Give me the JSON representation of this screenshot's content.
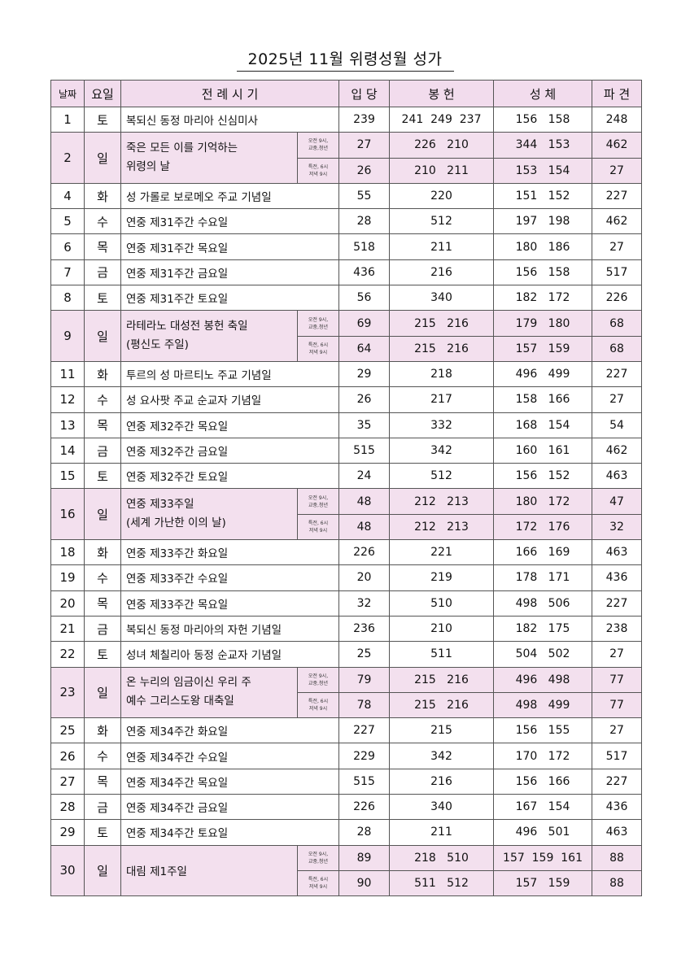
{
  "title": "2025년 11월 위령성월 성가",
  "colors": {
    "sunday_bg": "#f3e0ee",
    "header_bg": "#f2dced",
    "border": "#555555"
  },
  "headers": [
    "날짜",
    "요일",
    "전 례 시 기",
    "입 당",
    "봉 헌",
    "성 체",
    "파 견"
  ],
  "sub_labels": [
    {
      "line1": "오전 9시,",
      "line2": "교중,청년"
    },
    {
      "line1": "특전, 6시",
      "line2": "저녁 9시"
    }
  ],
  "rows": [
    {
      "date": "1",
      "day": "토",
      "name": [
        "복되신 동정 마리아 신심미사"
      ],
      "entries": [
        [
          "239",
          "241  249  237",
          "156   158",
          "248"
        ]
      ]
    },
    {
      "date": "2",
      "day": "일",
      "name": [
        "죽은 모든 이를 기억하는",
        "위령의 날"
      ],
      "entries": [
        [
          "27",
          "226   210",
          "344   153",
          "462"
        ],
        [
          "26",
          "210   211",
          "153   154",
          "27"
        ]
      ]
    },
    {
      "date": "4",
      "day": "화",
      "name": [
        "성 가롤로 보로메오 주교 기념일"
      ],
      "entries": [
        [
          "55",
          "220",
          "151   152",
          "227"
        ]
      ]
    },
    {
      "date": "5",
      "day": "수",
      "name": [
        "연중 제31주간 수요일"
      ],
      "entries": [
        [
          "28",
          "512",
          "197   198",
          "462"
        ]
      ]
    },
    {
      "date": "6",
      "day": "목",
      "name": [
        "연중 제31주간 목요일"
      ],
      "entries": [
        [
          "518",
          "211",
          "180   186",
          "27"
        ]
      ]
    },
    {
      "date": "7",
      "day": "금",
      "name": [
        "연중 제31주간 금요일"
      ],
      "entries": [
        [
          "436",
          "216",
          "156   158",
          "517"
        ]
      ]
    },
    {
      "date": "8",
      "day": "토",
      "name": [
        "연중 제31주간 토요일"
      ],
      "entries": [
        [
          "56",
          "340",
          "182   172",
          "226"
        ]
      ]
    },
    {
      "date": "9",
      "day": "일",
      "name": [
        "라테라노 대성전 봉헌 축일",
        "(평신도 주일)"
      ],
      "entries": [
        [
          "69",
          "215   216",
          "179   180",
          "68"
        ],
        [
          "64",
          "215   216",
          "157   159",
          "68"
        ]
      ]
    },
    {
      "date": "11",
      "day": "화",
      "name": [
        "투르의 성 마르티노 주교 기념일"
      ],
      "entries": [
        [
          "29",
          "218",
          "496   499",
          "227"
        ]
      ]
    },
    {
      "date": "12",
      "day": "수",
      "name": [
        "성 요사팟 주교 순교자 기념일"
      ],
      "entries": [
        [
          "26",
          "217",
          "158   166",
          "27"
        ]
      ]
    },
    {
      "date": "13",
      "day": "목",
      "name": [
        "연중 제32주간 목요일"
      ],
      "entries": [
        [
          "35",
          "332",
          "168   154",
          "54"
        ]
      ]
    },
    {
      "date": "14",
      "day": "금",
      "name": [
        "연중 제32주간 금요일"
      ],
      "entries": [
        [
          "515",
          "342",
          "160   161",
          "462"
        ]
      ]
    },
    {
      "date": "15",
      "day": "토",
      "name": [
        "연중 제32주간 토요일"
      ],
      "entries": [
        [
          "24",
          "512",
          "156   152",
          "463"
        ]
      ]
    },
    {
      "date": "16",
      "day": "일",
      "name": [
        "연중 제33주일",
        "(세계 가난한 이의 날)"
      ],
      "entries": [
        [
          "48",
          "212   213",
          "180   172",
          "47"
        ],
        [
          "48",
          "212   213",
          "172   176",
          "32"
        ]
      ]
    },
    {
      "date": "18",
      "day": "화",
      "name": [
        "연중 제33주간 화요일"
      ],
      "entries": [
        [
          "226",
          "221",
          "166   169",
          "463"
        ]
      ]
    },
    {
      "date": "19",
      "day": "수",
      "name": [
        "연중 제33주간 수요일"
      ],
      "entries": [
        [
          "20",
          "219",
          "178   171",
          "436"
        ]
      ]
    },
    {
      "date": "20",
      "day": "목",
      "name": [
        "연중 제33주간 목요일"
      ],
      "entries": [
        [
          "32",
          "510",
          "498   506",
          "227"
        ]
      ]
    },
    {
      "date": "21",
      "day": "금",
      "name": [
        "복되신 동정 마리아의 자헌 기념일"
      ],
      "entries": [
        [
          "236",
          "210",
          "182   175",
          "238"
        ]
      ]
    },
    {
      "date": "22",
      "day": "토",
      "name": [
        "성녀 체칠리아 동정 순교자 기념일"
      ],
      "entries": [
        [
          "25",
          "511",
          "504   502",
          "27"
        ]
      ]
    },
    {
      "date": "23",
      "day": "일",
      "name": [
        "온 누리의 임금이신 우리 주",
        "예수 그리스도왕 대축일"
      ],
      "entries": [
        [
          "79",
          "215   216",
          "496   498",
          "77"
        ],
        [
          "78",
          "215   216",
          "498   499",
          "77"
        ]
      ]
    },
    {
      "date": "25",
      "day": "화",
      "name": [
        "연중 제34주간 화요일"
      ],
      "entries": [
        [
          "227",
          "215",
          "156   155",
          "27"
        ]
      ]
    },
    {
      "date": "26",
      "day": "수",
      "name": [
        "연중 제34주간 수요일"
      ],
      "entries": [
        [
          "229",
          "342",
          "170   172",
          "517"
        ]
      ]
    },
    {
      "date": "27",
      "day": "목",
      "name": [
        "연중 제34주간 목요일"
      ],
      "entries": [
        [
          "515",
          "216",
          "156   166",
          "227"
        ]
      ]
    },
    {
      "date": "28",
      "day": "금",
      "name": [
        "연중 제34주간 금요일"
      ],
      "entries": [
        [
          "226",
          "340",
          "167   154",
          "436"
        ]
      ]
    },
    {
      "date": "29",
      "day": "토",
      "name": [
        "연중 제34주간 토요일"
      ],
      "entries": [
        [
          "28",
          "211",
          "496   501",
          "463"
        ]
      ]
    },
    {
      "date": "30",
      "day": "일",
      "name": [
        "대림 제1주일"
      ],
      "entries": [
        [
          "89",
          "218   510",
          "157  159  161",
          "88"
        ],
        [
          "90",
          "511   512",
          "157   159",
          "88"
        ]
      ]
    }
  ]
}
